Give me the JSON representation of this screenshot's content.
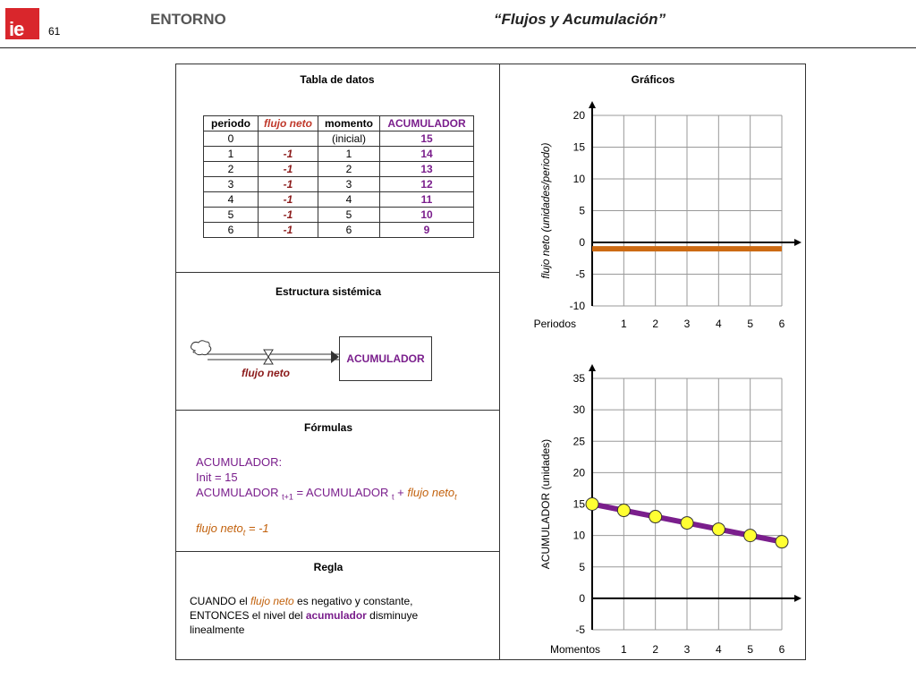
{
  "header": {
    "logo_text": "ie",
    "page_number": "61",
    "section": "ENTORNO",
    "title": "“Flujos y Acumulación”"
  },
  "panels": {
    "tabla_title": "Tabla de datos",
    "graficos_title": "Gráficos",
    "estructura_title": "Estructura sistémica",
    "formulas_title": "Fórmulas",
    "regla_title": "Regla"
  },
  "table": {
    "headers": [
      "periodo",
      "flujo neto",
      "momento",
      "ACUMULADOR"
    ],
    "rows": [
      [
        "0",
        "",
        "(inicial)",
        "15"
      ],
      [
        "1",
        "-1",
        "1",
        "14"
      ],
      [
        "2",
        "-1",
        "2",
        "13"
      ],
      [
        "3",
        "-1",
        "3",
        "12"
      ],
      [
        "4",
        "-1",
        "4",
        "11"
      ],
      [
        "5",
        "-1",
        "5",
        "10"
      ],
      [
        "6",
        "-1",
        "6",
        "9"
      ]
    ]
  },
  "estructura": {
    "stock_label": "ACUMULADOR",
    "flow_label": "flujo neto"
  },
  "formulas": {
    "line1": "ACUMULADOR:",
    "line2": "Init = 15",
    "line3_a": "ACUMULADOR",
    "line3_sub1": "t+1",
    "line3_b": " = ACUMULADOR",
    "line3_sub2": "t",
    "line3_c": " + ",
    "line3_d": "flujo neto",
    "line3_sub3": "t",
    "line4_a": "flujo neto",
    "line4_sub": "t",
    "line4_b": " = -1"
  },
  "regla": {
    "p1": "CUANDO el ",
    "p2": "flujo neto",
    "p3": " es negativo y constante,",
    "p4": "ENTONCES el nivel del ",
    "p5": "acumulador",
    "p6": " disminuye linealmente"
  },
  "colors": {
    "flow_line": "#cc6a12",
    "stock_line": "#7a1e8c",
    "marker": "#ffff33",
    "grid": "#999999"
  },
  "chart_data": [
    {
      "type": "line",
      "xlabel": "Periodos",
      "ylabel": "flujo neto (unidades/periodo)",
      "categories": [
        "1",
        "2",
        "3",
        "4",
        "5",
        "6"
      ],
      "x": [
        0,
        6
      ],
      "values": [
        -1,
        -1
      ],
      "yticks": [
        20,
        15,
        10,
        5,
        0,
        -5,
        -10
      ],
      "ylim": [
        -10,
        20
      ],
      "xlim": [
        0,
        6
      ],
      "grid": true
    },
    {
      "type": "line",
      "xlabel": "Momentos",
      "ylabel": "ACUMULADOR (unidades)",
      "categories": [
        "1",
        "2",
        "3",
        "4",
        "5",
        "6"
      ],
      "x": [
        0,
        1,
        2,
        3,
        4,
        5,
        6
      ],
      "values": [
        15,
        14,
        13,
        12,
        11,
        10,
        9
      ],
      "yticks": [
        35,
        30,
        25,
        20,
        15,
        10,
        5,
        0,
        -5
      ],
      "ylim": [
        -5,
        35
      ],
      "xlim": [
        0,
        6
      ],
      "grid": true
    }
  ]
}
